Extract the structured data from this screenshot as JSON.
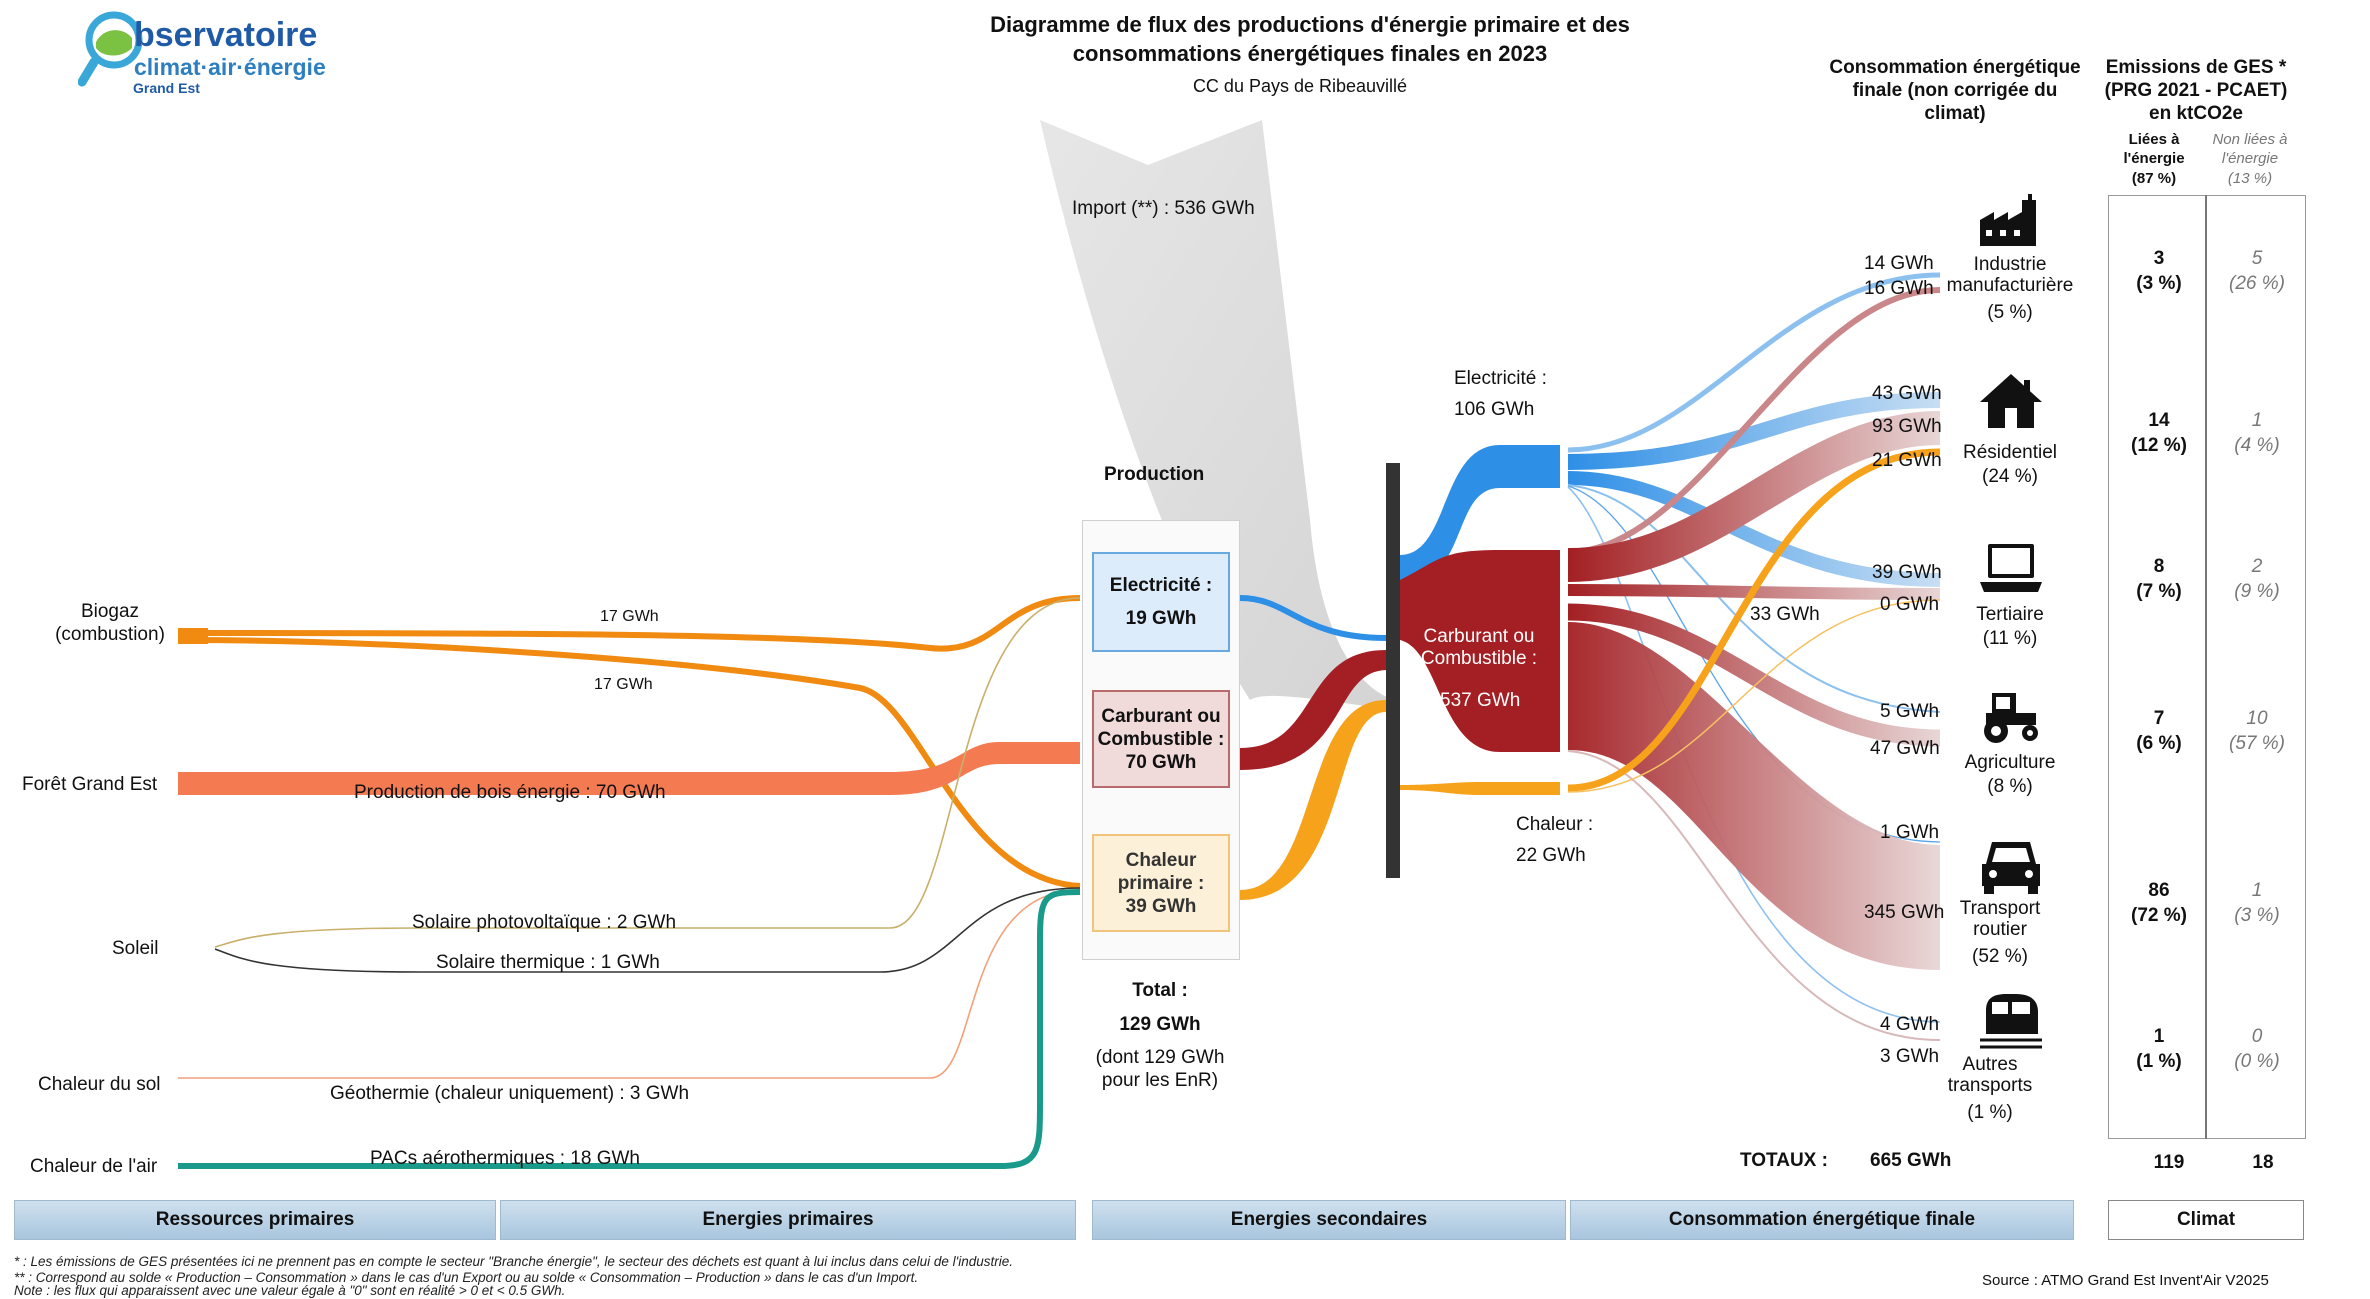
{
  "logo": {
    "line1": "bservatoire",
    "line2": "climat·air·énergie",
    "line3": "Grand Est"
  },
  "header": {
    "title_line1": "Diagramme de flux des productions d'énergie primaire et des",
    "title_line2": "consommations énergétiques finales en 2023",
    "subtitle": "CC du Pays de Ribeauvillé"
  },
  "import_label": "Import (**) :  536 GWh",
  "resources": {
    "biogaz": "Biogaz\n(combustion)",
    "foret": "Forêt Grand Est",
    "soleil": "Soleil",
    "chaleur_sol": "Chaleur du sol",
    "chaleur_air": "Chaleur de l'air"
  },
  "flow_labels": {
    "biogaz_1": "17 GWh",
    "biogaz_2": "17 GWh",
    "bois": "Production de bois énergie :  70 GWh",
    "solaire_pv": "Solaire photovoltaïque :  2 GWh",
    "solaire_th": "Solaire thermique :  1 GWh",
    "geothermie": "Géothermie (chaleur uniquement) :  3 GWh",
    "pac": "PACs aérothermiques :  18 GWh"
  },
  "production": {
    "heading": "Production",
    "elec_label": "Electricité :",
    "elec_value": "19 GWh",
    "carb_label": "Carburant ou Combustible :",
    "carb_value": "70 GWh",
    "chal_label": "Chaleur primaire :",
    "chal_value": "39 GWh",
    "total_label": "Total :",
    "total_value": "129 GWh",
    "total_note": "(dont  129 GWh pour les EnR)"
  },
  "secondary": {
    "elec_label": "Electricité :",
    "elec_value": "106 GWh",
    "carb_label": "Carburant ou Combustible :",
    "carb_value": "537 GWh",
    "chal_label": "Chaleur :",
    "chal_value": "22 GWh",
    "tertiaire_carb": "33 GWh"
  },
  "final": {
    "heading": "Consommation énergétique finale (non corrigée du climat)",
    "sectors": [
      {
        "name": "Industrie manufacturière",
        "pct": "(5 %)",
        "flows": [
          "14 GWh",
          "16 GWh"
        ],
        "icon": "factory-icon"
      },
      {
        "name": "Résidentiel",
        "pct": "(24 %)",
        "flows": [
          "43 GWh",
          "93 GWh",
          "21 GWh"
        ],
        "icon": "house-icon"
      },
      {
        "name": "Tertiaire",
        "pct": "(11 %)",
        "flows": [
          "39 GWh",
          "0 GWh"
        ],
        "icon": "laptop-icon"
      },
      {
        "name": "Agriculture",
        "pct": "(8 %)",
        "flows": [
          "5 GWh",
          "47 GWh"
        ],
        "icon": "tractor-icon"
      },
      {
        "name": "Transport routier",
        "pct": "(52 %)",
        "flows": [
          "1 GWh",
          "345 GWh"
        ],
        "icon": "car-icon"
      },
      {
        "name": "Autres transports",
        "pct": "(1 %)",
        "flows": [
          "4 GWh",
          "3 GWh"
        ],
        "icon": "train-icon"
      }
    ],
    "totaux_label": "TOTAUX :",
    "totaux_value": "665 GWh"
  },
  "ges": {
    "heading": "Emissions de GES * (PRG 2021 - PCAET) en ktCO2e",
    "col1_label": "Liées à l'énergie",
    "col1_pct": "(87 %)",
    "col2_label": "Non liées à l'énergie",
    "col2_pct": "(13 %)",
    "rows": [
      {
        "e": "3",
        "ep": "(3 %)",
        "n": "5",
        "np": "(26 %)"
      },
      {
        "e": "14",
        "ep": "(12 %)",
        "n": "1",
        "np": "(4 %)"
      },
      {
        "e": "8",
        "ep": "(7 %)",
        "n": "2",
        "np": "(9 %)"
      },
      {
        "e": "7",
        "ep": "(6 %)",
        "n": "10",
        "np": "(57 %)"
      },
      {
        "e": "86",
        "ep": "(72 %)",
        "n": "1",
        "np": "(3 %)"
      },
      {
        "e": "1",
        "ep": "(1 %)",
        "n": "0",
        "np": "(0 %)"
      }
    ],
    "total_e": "119",
    "total_n": "18"
  },
  "footer": {
    "band1": "Ressources primaires",
    "band2": "Energies primaires",
    "band3": "Energies secondaires",
    "band4": "Consommation énergétique finale",
    "band5": "Climat",
    "note1": "* : Les émissions de GES présentées ici ne prennent pas en compte le secteur \"Branche énergie\", le secteur des déchets est quant à lui inclus dans celui de l'industrie.",
    "note2": "** : Correspond au solde « Production – Consommation » dans le cas d'un Export ou au solde « Consommation – Production » dans le cas d'un Import.",
    "note3": "Note : les flux qui apparaissent avec une valeur égale à \"0\" sont en réalité > 0 et < 0.5 GWh.",
    "source": "Source : ATMO Grand Est Invent'Air V2025"
  },
  "colors": {
    "electricity": "#2e8fe6",
    "fuel": "#a31f23",
    "heat": "#f7a21b",
    "biogaz": "#f08a10",
    "wood": "#f47a52",
    "air_heat": "#1a9a8a",
    "import": "#dcdcdc"
  }
}
